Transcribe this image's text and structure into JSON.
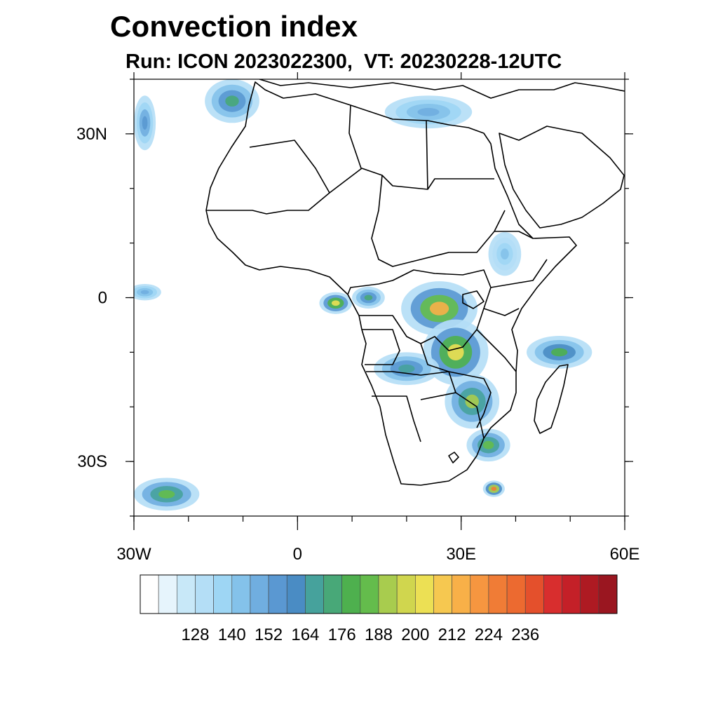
{
  "title": "Convection index",
  "subtitle": "Run: ICON 2023022300,  VT: 20230228-12UTC",
  "map": {
    "lon_range": [
      -30,
      60
    ],
    "lat_range": [
      -40,
      40
    ],
    "lat_ticks": [
      {
        "value": 30,
        "label": "30N"
      },
      {
        "value": 0,
        "label": "0"
      },
      {
        "value": -30,
        "label": "30S"
      }
    ],
    "lon_ticks": [
      {
        "value": -30,
        "label": "30W"
      },
      {
        "value": 0,
        "label": "0"
      },
      {
        "value": 30,
        "label": "30E"
      },
      {
        "value": 60,
        "label": "60E"
      }
    ]
  },
  "colorbar": {
    "colors": [
      "#ffffff",
      "#e6f4fc",
      "#c8e8f8",
      "#b4def6",
      "#9ed6f4",
      "#84c2ea",
      "#70aee0",
      "#5a98d2",
      "#4a8cc4",
      "#46a29c",
      "#48a878",
      "#4eb04e",
      "#64bc4c",
      "#a8cc4e",
      "#d0d64e",
      "#ece054",
      "#f6c850",
      "#f8b048",
      "#f69640",
      "#f07c36",
      "#ec6a30",
      "#e4502c",
      "#d82e2e",
      "#c42028",
      "#ae1a22",
      "#9a1620"
    ],
    "labels": [
      "128",
      "140",
      "152",
      "164",
      "176",
      "188",
      "200",
      "212",
      "224",
      "236"
    ]
  },
  "chart_data": {
    "type": "heatmap",
    "title": "Convection index",
    "subtitle": "Run: ICON 2023022300,  VT: 20230228-12UTC",
    "xlim": [
      -30,
      60
    ],
    "ylim": [
      -40,
      40
    ],
    "colorbar_ticks": [
      128,
      140,
      152,
      164,
      176,
      188,
      200,
      212,
      224,
      236
    ],
    "regions": [
      {
        "lon": 26,
        "lat": -2,
        "rx": 7,
        "ry": 5,
        "value": 215
      },
      {
        "lon": 29,
        "lat": -10,
        "rx": 6,
        "ry": 6,
        "value": 200
      },
      {
        "lon": 32,
        "lat": -19,
        "rx": 5,
        "ry": 5,
        "value": 190
      },
      {
        "lon": 35,
        "lat": -27,
        "rx": 4,
        "ry": 3,
        "value": 185
      },
      {
        "lon": 7,
        "lat": -1,
        "rx": 3,
        "ry": 2,
        "value": 205
      },
      {
        "lon": 13,
        "lat": 0,
        "rx": 3,
        "ry": 2,
        "value": 170
      },
      {
        "lon": 20,
        "lat": -13,
        "rx": 6,
        "ry": 3,
        "value": 165
      },
      {
        "lon": 48,
        "lat": -10,
        "rx": 6,
        "ry": 3,
        "value": 180
      },
      {
        "lon": 36,
        "lat": -35,
        "rx": 2,
        "ry": 1.5,
        "value": 225
      },
      {
        "lon": -24,
        "lat": -36,
        "rx": 6,
        "ry": 3,
        "value": 185
      },
      {
        "lon": -12,
        "lat": 36,
        "rx": 5,
        "ry": 4,
        "value": 170
      },
      {
        "lon": -28,
        "lat": 32,
        "rx": 2,
        "ry": 5,
        "value": 155
      },
      {
        "lon": 24,
        "lat": 34,
        "rx": 8,
        "ry": 3,
        "value": 150
      },
      {
        "lon": -28,
        "lat": 1,
        "rx": 3,
        "ry": 1.5,
        "value": 150
      },
      {
        "lon": 38,
        "lat": 8,
        "rx": 3,
        "ry": 4,
        "value": 140
      }
    ]
  }
}
